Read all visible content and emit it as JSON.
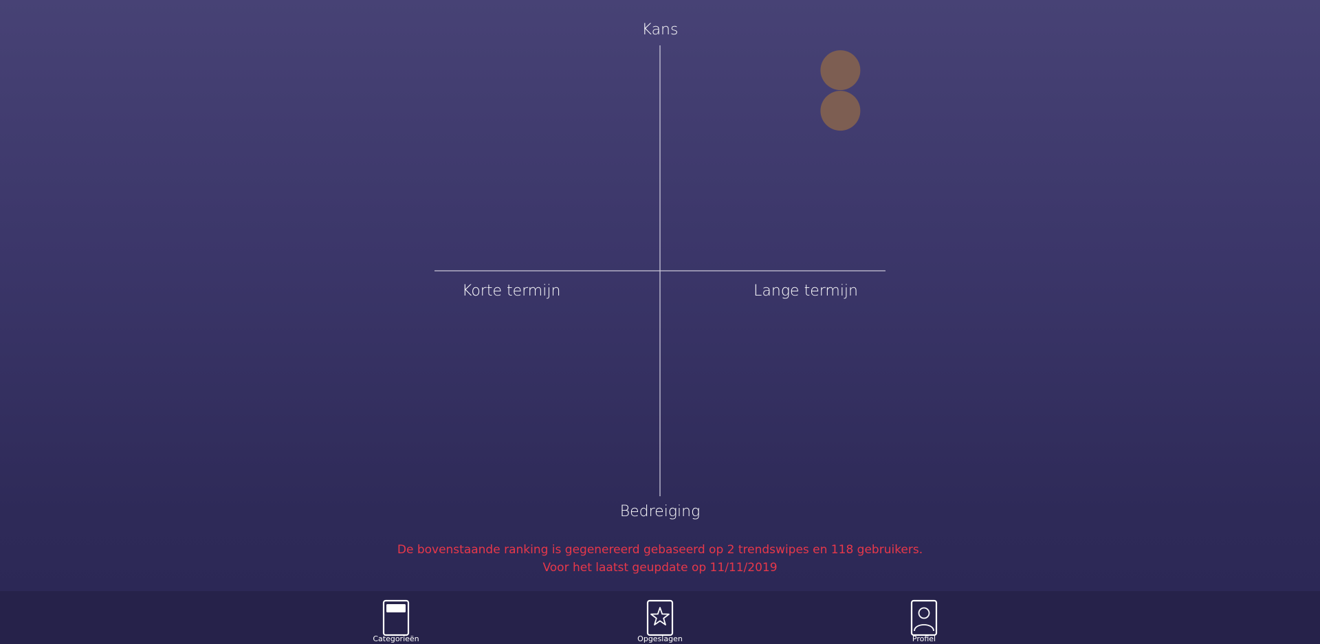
{
  "chart_data": {
    "type": "scatter",
    "axes": {
      "y_top": "Kans",
      "y_bottom": "Bedreiging",
      "x_left": "Korte termijn",
      "x_right": "Lange termijn"
    },
    "xlim": [
      -1,
      1
    ],
    "ylim": [
      -1,
      1
    ],
    "points": [
      {
        "x": 0.8,
        "y": 0.89
      },
      {
        "x": 0.8,
        "y": 0.71
      }
    ],
    "point_color": "#7d5e52",
    "grid": false
  },
  "info": {
    "line1": "De bovenstaande ranking is gegenereerd gebaseerd op 2 trendswipes en 118 gebruikers.",
    "line2": "Voor het laatst geupdate op 11/11/2019",
    "color": "#e8384a"
  },
  "nav": {
    "items": [
      {
        "label": "Categorieën",
        "icon": "categories-card-icon"
      },
      {
        "label": "Opgeslagen",
        "icon": "star-icon"
      },
      {
        "label": "Profiel",
        "icon": "profile-icon"
      }
    ]
  }
}
